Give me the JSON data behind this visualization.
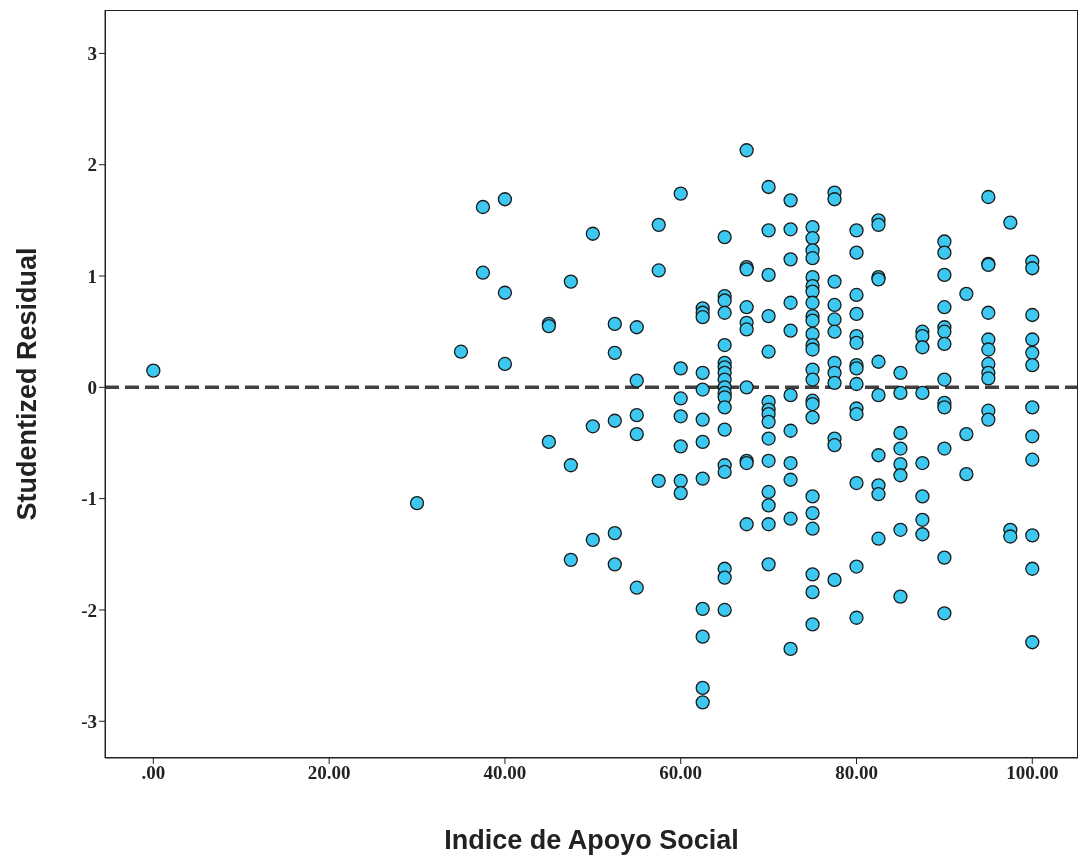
{
  "chart_data": {
    "type": "scatter",
    "xlabel": "Indice de Apoyo Social",
    "ylabel": "Studentized Residual",
    "xlim": [
      -5.5,
      105.2
    ],
    "ylim": [
      -3.33,
      3.39
    ],
    "xticks": [
      {
        "value": 0,
        "label": ".00"
      },
      {
        "value": 20,
        "label": "20.00"
      },
      {
        "value": 40,
        "label": "40.00"
      },
      {
        "value": 60,
        "label": "60.00"
      },
      {
        "value": 80,
        "label": "80.00"
      },
      {
        "value": 100,
        "label": "100.00"
      }
    ],
    "yticks": [
      -3,
      -2,
      -1,
      0,
      1,
      2,
      3
    ],
    "grid": false,
    "marker": "circle",
    "ref_lines": [
      {
        "axis": "y",
        "value": 0,
        "color": "#404040",
        "line_style": "dashed"
      }
    ],
    "series": [
      {
        "color": "#3cc8f0",
        "x": [
          0,
          30,
          35,
          37.5,
          37.5,
          40,
          40,
          40,
          45,
          45,
          45,
          47.5,
          47.5,
          47.5,
          50,
          50,
          50,
          52.5,
          52.5,
          52.5,
          52.5,
          52.5,
          55,
          55,
          55,
          55,
          55,
          57.5,
          57.5,
          57.5,
          60,
          60,
          60,
          60,
          60,
          60,
          60,
          62.5,
          62.5,
          62.5,
          62.5,
          62.5,
          62.5,
          62.5,
          62.5,
          62.5,
          62.5,
          62.5,
          62.5,
          65,
          65,
          65,
          65,
          65,
          65,
          65,
          65,
          65,
          65,
          65,
          65,
          65,
          65,
          65,
          65,
          65,
          65,
          65,
          67.5,
          67.5,
          67.5,
          67.5,
          67.5,
          67.5,
          67.5,
          67.5,
          67.5,
          67.5,
          70,
          70,
          70,
          70,
          70,
          70,
          70,
          70,
          70,
          70,
          70,
          70,
          70,
          70,
          70,
          72.5,
          72.5,
          72.5,
          72.5,
          72.5,
          72.5,
          72.5,
          72.5,
          72.5,
          72.5,
          72.5,
          75,
          75,
          75,
          75,
          75,
          75,
          75,
          75,
          75,
          75,
          75,
          75,
          75,
          75,
          75,
          75,
          75,
          75,
          75,
          75,
          75,
          75,
          75,
          75,
          77.5,
          77.5,
          77.5,
          77.5,
          77.5,
          77.5,
          77.5,
          77.5,
          77.5,
          77.5,
          77.5,
          77.5,
          80,
          80,
          80,
          80,
          80,
          80,
          80,
          80,
          80,
          80,
          80,
          80,
          80,
          80,
          82.5,
          82.5,
          82.5,
          82.5,
          82.5,
          82.5,
          82.5,
          82.5,
          82.5,
          82.5,
          85,
          85,
          85,
          85,
          85,
          85,
          85,
          85,
          87.5,
          87.5,
          87.5,
          87.5,
          87.5,
          87.5,
          87.5,
          87.5,
          90,
          90,
          90,
          90,
          90,
          90,
          90,
          90,
          90,
          90,
          90,
          90,
          90,
          92.5,
          92.5,
          92.5,
          95,
          95,
          95,
          95,
          95,
          95,
          95,
          95,
          95,
          95,
          95,
          97.5,
          97.5,
          97.5,
          100,
          100,
          100,
          100,
          100,
          100,
          100,
          100,
          100,
          100,
          100,
          100
        ],
        "values": [
          0.15,
          -1.04,
          0.32,
          1.62,
          1.03,
          1.69,
          0.85,
          0.21,
          0.57,
          0.55,
          -0.49,
          0.95,
          -0.7,
          -1.55,
          1.38,
          -0.35,
          -1.37,
          0.57,
          0.31,
          -0.3,
          -1.31,
          -1.59,
          0.54,
          0.06,
          -0.25,
          -0.42,
          -1.8,
          1.46,
          1.05,
          -0.84,
          1.74,
          0.17,
          -0.1,
          -0.26,
          -0.53,
          -0.84,
          -0.95,
          0.71,
          0.67,
          0.63,
          0.13,
          -0.02,
          -0.29,
          -0.49,
          -0.82,
          -1.99,
          -2.24,
          -2.7,
          -2.83,
          1.35,
          0.82,
          0.78,
          0.67,
          0.38,
          0.22,
          0.18,
          0.13,
          0.07,
          0,
          -0.05,
          -0.09,
          -0.18,
          -0.38,
          -0.7,
          -0.76,
          -1.63,
          -1.71,
          -2.0,
          2.13,
          1.08,
          1.06,
          0.72,
          0.58,
          0.52,
          0.0,
          -0.66,
          -0.68,
          -1.23,
          1.8,
          1.41,
          1.01,
          0.64,
          0.32,
          -0.13,
          -0.2,
          -0.24,
          -0.31,
          -0.46,
          -0.66,
          -0.94,
          -1.06,
          -1.23,
          -1.59,
          1.68,
          1.42,
          1.15,
          0.76,
          0.51,
          -0.07,
          -0.39,
          -0.68,
          -0.83,
          -1.18,
          -2.35,
          1.44,
          1.34,
          1.23,
          1.16,
          0.99,
          0.91,
          0.86,
          0.76,
          0.64,
          0.6,
          0.48,
          0.38,
          0.34,
          0.16,
          0.07,
          -0.12,
          -0.15,
          -0.27,
          -0.98,
          -1.13,
          -1.27,
          -1.68,
          -1.84,
          -2.13,
          1.75,
          1.69,
          0.95,
          0.74,
          0.61,
          0.5,
          0.22,
          0.13,
          0.04,
          -0.46,
          -0.52,
          -1.73,
          1.41,
          1.21,
          0.83,
          0.66,
          0.46,
          0.4,
          0.2,
          0.17,
          0.03,
          -0.19,
          -0.24,
          -0.86,
          -1.61,
          -2.07,
          1.5,
          1.46,
          0.99,
          0.97,
          0.23,
          -0.07,
          -0.61,
          -0.88,
          -0.96,
          -1.36,
          0.13,
          -0.05,
          -0.41,
          -0.55,
          -0.69,
          -0.79,
          -1.28,
          -1.88,
          0.5,
          0.46,
          0.36,
          -0.05,
          -0.68,
          -0.98,
          -1.19,
          -1.32,
          1.31,
          1.21,
          1.01,
          0.72,
          0.54,
          0.5,
          0.39,
          0.07,
          -0.14,
          -0.18,
          -0.55,
          -1.53,
          -2.03,
          0.84,
          -0.42,
          -0.78,
          1.71,
          1.11,
          1.1,
          0.67,
          0.43,
          0.34,
          0.21,
          0.13,
          0.08,
          -0.21,
          -0.29,
          1.48,
          -1.28,
          -1.34,
          1.13,
          1.07,
          0.65,
          0.43,
          0.31,
          0.2,
          -0.18,
          -0.44,
          -0.65,
          -1.33,
          -1.63,
          -2.29
        ]
      }
    ]
  }
}
